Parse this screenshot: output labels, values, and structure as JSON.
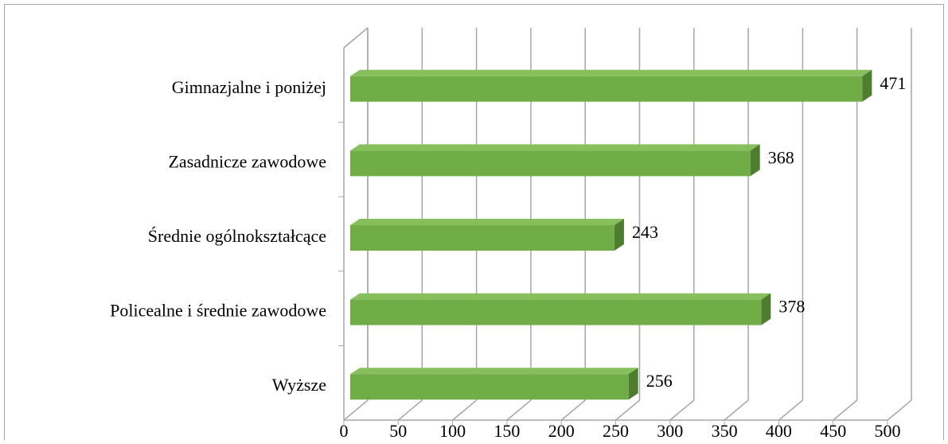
{
  "chart_data": {
    "type": "bar",
    "orientation": "horizontal",
    "categories": [
      "Gimnazjalne i poniżej",
      "Zasadnicze zawodowe",
      "Średnie ogólnokształcące",
      "Policealne i średnie zawodowe",
      "Wyższe"
    ],
    "values": [
      471,
      368,
      243,
      378,
      256
    ],
    "color": "#70ad47",
    "xlim": [
      0,
      500
    ],
    "xticks": [
      0,
      50,
      100,
      150,
      200,
      250,
      300,
      350,
      400,
      450,
      500
    ],
    "grid": true
  }
}
